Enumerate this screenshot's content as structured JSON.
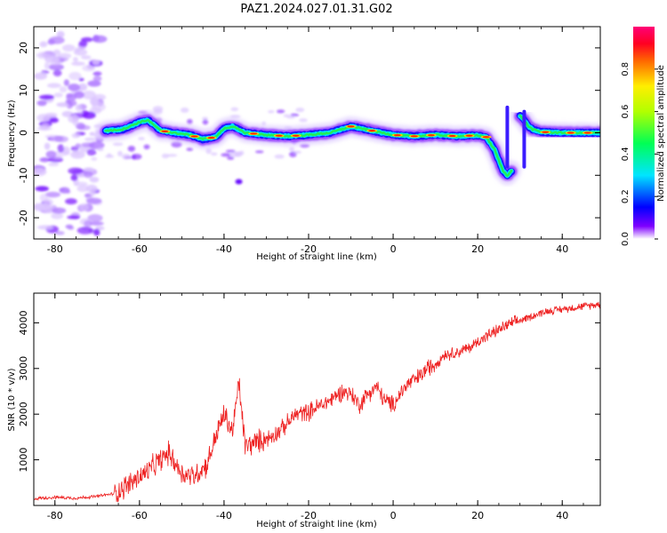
{
  "figure": {
    "title": "PAZ1.2024.027.01.31.G02"
  },
  "chart_data": [
    {
      "type": "heatmap",
      "title": "PAZ1.2024.027.01.31.G02",
      "xlabel": "Height of straight line (km)",
      "ylabel": "Frequency (Hz)",
      "xlim": [
        -85,
        49
      ],
      "ylim": [
        -25,
        25
      ],
      "xticks": [
        -80,
        -60,
        -40,
        -20,
        0,
        20,
        40
      ],
      "yticks": [
        -20,
        -10,
        0,
        10,
        20
      ],
      "colorbar": {
        "label": "Normalized spectral amplitude",
        "range": [
          0,
          1
        ],
        "ticks": [
          "0.0",
          "0.2",
          "0.4",
          "0.6",
          "0.8"
        ],
        "colormap": "gist_rainbow_r"
      },
      "ridge": {
        "x": [
          -68,
          -64,
          -60,
          -58,
          -55,
          -52,
          -48,
          -45,
          -42,
          -40,
          -38,
          -35,
          -30,
          -25,
          -20,
          -15,
          -10,
          -5,
          0,
          5,
          10,
          15,
          20,
          22,
          24,
          26,
          27,
          28
        ],
        "y": [
          0.5,
          0.8,
          2.5,
          3.0,
          0.5,
          0.0,
          -0.5,
          -1.5,
          -1.0,
          1.0,
          1.5,
          0.0,
          -0.5,
          -0.8,
          -0.5,
          0.0,
          1.5,
          0.5,
          -0.5,
          -0.8,
          -0.5,
          -0.8,
          -0.6,
          -1.0,
          -4.0,
          -9.0,
          -10.0,
          -9.0
        ],
        "x2": [
          30,
          31,
          32,
          33,
          35,
          40,
          45,
          49
        ],
        "y2": [
          4.0,
          3.0,
          1.5,
          0.8,
          0.2,
          0.0,
          0.0,
          0.0
        ]
      }
    },
    {
      "type": "line",
      "title": "",
      "xlabel": "Height of straight line (km)",
      "ylabel": "SNR (10 * v/v)",
      "xlim": [
        -85,
        49
      ],
      "ylim": [
        0,
        4650
      ],
      "xticks": [
        -80,
        -60,
        -40,
        -20,
        0,
        20,
        40
      ],
      "yticks": [
        1000,
        2000,
        3000,
        4000
      ],
      "series": [
        {
          "color": "#ee2222",
          "x": [
            -85,
            -80,
            -75,
            -70,
            -66,
            -62,
            -58,
            -55,
            -53,
            -50,
            -47,
            -44,
            -42,
            -40,
            -38,
            -36.5,
            -35,
            -32,
            -29,
            -26,
            -23,
            -20,
            -17,
            -15,
            -12,
            -10,
            -8,
            -6,
            -4,
            -2,
            0,
            2,
            4,
            6,
            8,
            10,
            12,
            15,
            18,
            21,
            24,
            27,
            30,
            33,
            36,
            40,
            44,
            48
          ],
          "y": [
            150,
            180,
            160,
            200,
            260,
            500,
            750,
            1000,
            1150,
            700,
            650,
            900,
            1500,
            2000,
            1600,
            2700,
            1300,
            1400,
            1500,
            1700,
            2000,
            2050,
            2200,
            2300,
            2500,
            2450,
            2200,
            2450,
            2600,
            2300,
            2200,
            2500,
            2700,
            2800,
            3000,
            3100,
            3300,
            3350,
            3450,
            3650,
            3800,
            3950,
            4050,
            4150,
            4250,
            4300,
            4350,
            4400
          ]
        }
      ]
    }
  ]
}
